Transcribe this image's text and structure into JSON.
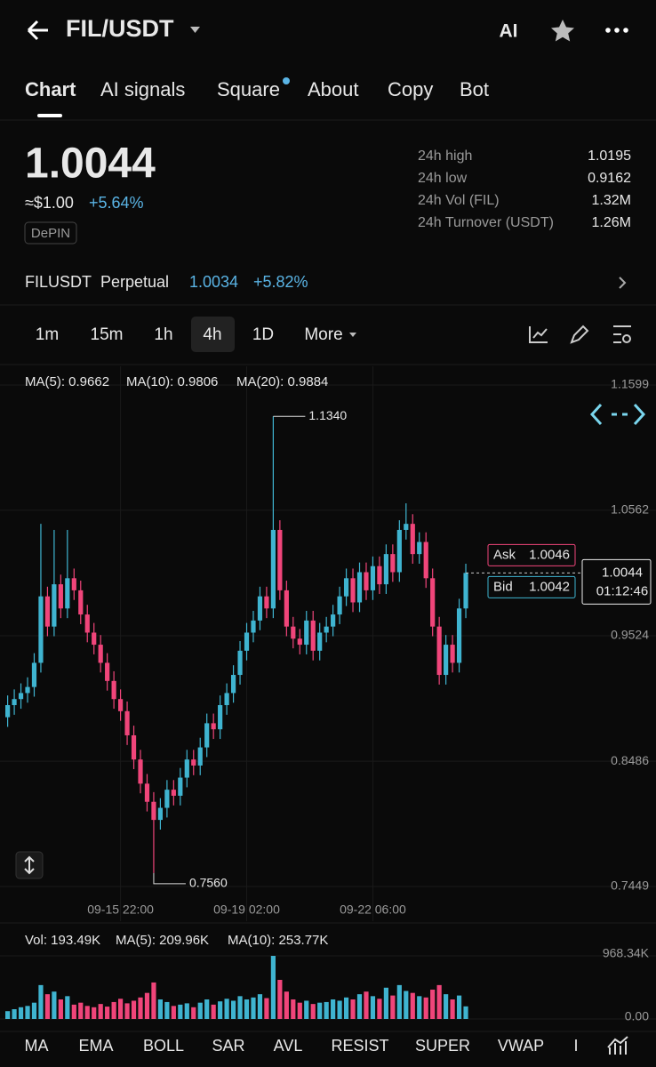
{
  "header": {
    "title": "FIL/USDT",
    "ai": "AI"
  },
  "tabs": [
    "Chart",
    "AI signals",
    "Square",
    "About",
    "Copy",
    "Bot"
  ],
  "price": {
    "last": "1.0044",
    "usd": "≈$1.00",
    "change": "+5.64%",
    "tag": "DePIN"
  },
  "stats": [
    {
      "label": "24h high",
      "value": "1.0195"
    },
    {
      "label": "24h low",
      "value": "0.9162"
    },
    {
      "label": "24h Vol (FIL)",
      "value": "1.32M"
    },
    {
      "label": "24h Turnover (USDT)",
      "value": "1.26M"
    }
  ],
  "perpetual": {
    "name": "FILUSDT",
    "type": "Perpetual",
    "price": "1.0034",
    "change": "+5.82%"
  },
  "timeframes": [
    "1m",
    "15m",
    "1h",
    "4h",
    "1D",
    "More"
  ],
  "chart_data": [
    {
      "type": "candlestick",
      "up_color": "#3fb4d0",
      "down_color": "#f0457a",
      "grid": true,
      "legend": [
        {
          "name": "MA(5): 0.9662",
          "color": "#f2a65a"
        },
        {
          "name": "MA(10): 0.9806",
          "color": "#e2559a"
        },
        {
          "name": "MA(20): 0.9884",
          "color": "#9a55f0"
        }
      ],
      "categories": [
        null,
        null,
        null,
        null,
        null,
        null,
        null,
        null,
        null,
        null,
        null,
        null,
        null,
        null,
        null,
        null,
        null,
        "09-15 22:00",
        null,
        null,
        null,
        null,
        null,
        null,
        null,
        null,
        null,
        null,
        null,
        null,
        null,
        null,
        null,
        null,
        null,
        null,
        "09-19 02:00",
        null,
        null,
        null,
        null,
        null,
        null,
        null,
        null,
        null,
        null,
        null,
        null,
        null,
        null,
        null,
        null,
        null,
        null,
        "09-22 06:00",
        null,
        null,
        null,
        null,
        null,
        null,
        null,
        null,
        null,
        null,
        null,
        null,
        null,
        null
      ],
      "candles": [
        [
          0.885,
          0.903,
          0.877,
          0.895
        ],
        [
          0.895,
          0.908,
          0.887,
          0.9
        ],
        [
          0.9,
          0.913,
          0.892,
          0.905
        ],
        [
          0.905,
          0.918,
          0.897,
          0.91
        ],
        [
          0.91,
          0.938,
          0.902,
          0.93
        ],
        [
          0.93,
          1.045,
          0.922,
          0.985
        ],
        [
          0.985,
          0.993,
          0.952,
          0.96
        ],
        [
          0.96,
          1.04,
          0.952,
          0.995
        ],
        [
          0.995,
          1.003,
          0.967,
          0.975
        ],
        [
          0.975,
          1.04,
          0.967,
          1.0
        ],
        [
          1.0,
          1.008,
          0.982,
          0.99
        ],
        [
          0.99,
          0.998,
          0.962,
          0.97
        ],
        [
          0.97,
          0.978,
          0.947,
          0.955
        ],
        [
          0.955,
          0.963,
          0.937,
          0.945
        ],
        [
          0.945,
          0.953,
          0.922,
          0.93
        ],
        [
          0.93,
          0.938,
          0.907,
          0.915
        ],
        [
          0.915,
          0.923,
          0.892,
          0.9
        ],
        [
          0.9,
          0.908,
          0.882,
          0.89
        ],
        [
          0.89,
          0.898,
          0.862,
          0.87
        ],
        [
          0.87,
          0.878,
          0.842,
          0.85
        ],
        [
          0.85,
          0.858,
          0.822,
          0.83
        ],
        [
          0.83,
          0.838,
          0.807,
          0.815
        ],
        [
          0.815,
          0.823,
          0.756,
          0.8
        ],
        [
          0.8,
          0.818,
          0.792,
          0.81
        ],
        [
          0.81,
          0.833,
          0.802,
          0.825
        ],
        [
          0.825,
          0.833,
          0.812,
          0.82
        ],
        [
          0.82,
          0.843,
          0.812,
          0.835
        ],
        [
          0.835,
          0.858,
          0.827,
          0.85
        ],
        [
          0.85,
          0.858,
          0.837,
          0.845
        ],
        [
          0.845,
          0.868,
          0.837,
          0.86
        ],
        [
          0.86,
          0.888,
          0.852,
          0.88
        ],
        [
          0.88,
          0.888,
          0.867,
          0.875
        ],
        [
          0.875,
          0.903,
          0.867,
          0.895
        ],
        [
          0.895,
          0.913,
          0.887,
          0.905
        ],
        [
          0.905,
          0.928,
          0.897,
          0.92
        ],
        [
          0.92,
          0.948,
          0.912,
          0.94
        ],
        [
          0.94,
          0.963,
          0.932,
          0.955
        ],
        [
          0.955,
          0.973,
          0.947,
          0.965
        ],
        [
          0.965,
          0.993,
          0.957,
          0.985
        ],
        [
          0.985,
          0.993,
          0.967,
          0.975
        ],
        [
          0.975,
          1.134,
          0.967,
          1.04
        ],
        [
          1.04,
          1.048,
          0.982,
          0.99
        ],
        [
          0.99,
          0.998,
          0.952,
          0.96
        ],
        [
          0.96,
          0.968,
          0.942,
          0.95
        ],
        [
          0.95,
          0.958,
          0.937,
          0.945
        ],
        [
          0.945,
          0.973,
          0.937,
          0.965
        ],
        [
          0.965,
          0.973,
          0.932,
          0.94
        ],
        [
          0.94,
          0.963,
          0.932,
          0.955
        ],
        [
          0.955,
          0.968,
          0.947,
          0.96
        ],
        [
          0.96,
          0.978,
          0.952,
          0.97
        ],
        [
          0.97,
          0.993,
          0.962,
          0.985
        ],
        [
          0.985,
          1.008,
          0.977,
          1.0
        ],
        [
          1.0,
          1.008,
          0.972,
          0.98
        ],
        [
          0.98,
          1.013,
          0.972,
          1.005
        ],
        [
          1.005,
          1.013,
          0.982,
          0.99
        ],
        [
          0.99,
          1.018,
          0.982,
          1.01
        ],
        [
          1.01,
          1.018,
          0.987,
          0.995
        ],
        [
          0.995,
          1.028,
          0.987,
          1.02
        ],
        [
          1.02,
          1.028,
          0.997,
          1.005
        ],
        [
          1.005,
          1.048,
          0.997,
          1.04
        ],
        [
          1.04,
          1.062,
          1.032,
          1.045
        ],
        [
          1.045,
          1.053,
          1.012,
          1.02
        ],
        [
          1.02,
          1.038,
          1.012,
          1.03
        ],
        [
          1.03,
          1.038,
          0.992,
          1.0
        ],
        [
          1.0,
          1.008,
          0.952,
          0.96
        ],
        [
          0.96,
          0.968,
          0.912,
          0.92
        ],
        [
          0.92,
          0.953,
          0.912,
          0.945
        ],
        [
          0.945,
          0.953,
          0.922,
          0.93
        ],
        [
          0.93,
          0.983,
          0.922,
          0.975
        ],
        [
          0.975,
          1.012,
          0.967,
          1.0044
        ]
      ],
      "ylim": [
        0.7449,
        1.1599
      ],
      "yticks": [
        1.1599,
        1.0562,
        0.9524,
        0.8486,
        0.7449
      ],
      "high_label": {
        "value": 1.134,
        "label": "1.1340"
      },
      "low_label": {
        "value": 0.756,
        "label": "0.7560"
      },
      "current": 1.0044,
      "countdown": "01:12:46",
      "ask": {
        "label": "Ask",
        "value": 1.0046
      },
      "bid": {
        "label": "Bid",
        "value": 1.0042
      }
    },
    {
      "type": "bar",
      "legend": [
        {
          "name": "Vol: 193.49K",
          "color": "#cfcfcf"
        },
        {
          "name": "MA(5): 209.96K",
          "color": "#f2a65a"
        },
        {
          "name": "MA(10): 253.77K",
          "color": "#e2559a"
        }
      ],
      "values": [
        120,
        150,
        180,
        200,
        250,
        520,
        380,
        420,
        300,
        350,
        220,
        250,
        200,
        180,
        230,
        190,
        260,
        310,
        240,
        280,
        330,
        400,
        560,
        300,
        260,
        200,
        220,
        240,
        180,
        250,
        300,
        220,
        270,
        310,
        280,
        350,
        300,
        330,
        380,
        320,
        968,
        600,
        420,
        300,
        250,
        280,
        230,
        250,
        260,
        300,
        280,
        330,
        300,
        380,
        420,
        350,
        310,
        480,
        360,
        520,
        430,
        400,
        350,
        330,
        450,
        520,
        380,
        300,
        360,
        193.49
      ],
      "ylim": [
        0,
        968.34
      ],
      "yticks": [
        {
          "value": 968.34,
          "label": "968.34K"
        },
        {
          "value": 0,
          "label": "0.00"
        }
      ]
    }
  ],
  "indicators": [
    "MA",
    "EMA",
    "BOLL",
    "SAR",
    "AVL",
    "RESIST",
    "SUPER",
    "VWAP",
    "I"
  ]
}
